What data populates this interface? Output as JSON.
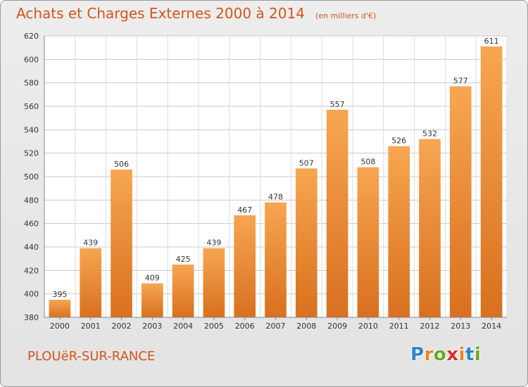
{
  "header": {
    "title": "Achats et Charges Externes 2000 à 2014",
    "unit": "(en milliers d'€)"
  },
  "footer": {
    "town": "PLOUëR-SUR-RANCE",
    "logo_letters": [
      {
        "char": "P",
        "color": "#2f86c6"
      },
      {
        "char": "r",
        "color": "#e8871e"
      },
      {
        "char": "o",
        "color": "#6aa82a"
      },
      {
        "char": "x",
        "color": "#d6312b"
      },
      {
        "char": "i",
        "color": "#e8871e"
      },
      {
        "char": "t",
        "color": "#2f86c6"
      },
      {
        "char": "i",
        "color": "#6aa82a"
      }
    ]
  },
  "colors": {
    "accent": "#d2551a",
    "bar_top": "#f7a651",
    "bar_bottom": "#d8701f",
    "grid": "#c8c8c8"
  },
  "chart_data": {
    "type": "bar",
    "title": "Achats et Charges Externes 2000 à 2014",
    "subtitle": "(en milliers d'€)",
    "xlabel": "",
    "ylabel": "",
    "categories": [
      "2000",
      "2001",
      "2002",
      "2003",
      "2004",
      "2005",
      "2006",
      "2007",
      "2008",
      "2009",
      "2010",
      "2011",
      "2012",
      "2013",
      "2014"
    ],
    "values": [
      395,
      439,
      506,
      409,
      425,
      439,
      467,
      478,
      507,
      557,
      508,
      526,
      532,
      577,
      611
    ],
    "ylim": [
      380,
      620
    ],
    "yticks": [
      380,
      400,
      420,
      440,
      460,
      480,
      500,
      520,
      540,
      560,
      580,
      600,
      620
    ],
    "grid": true,
    "legend": "none"
  }
}
